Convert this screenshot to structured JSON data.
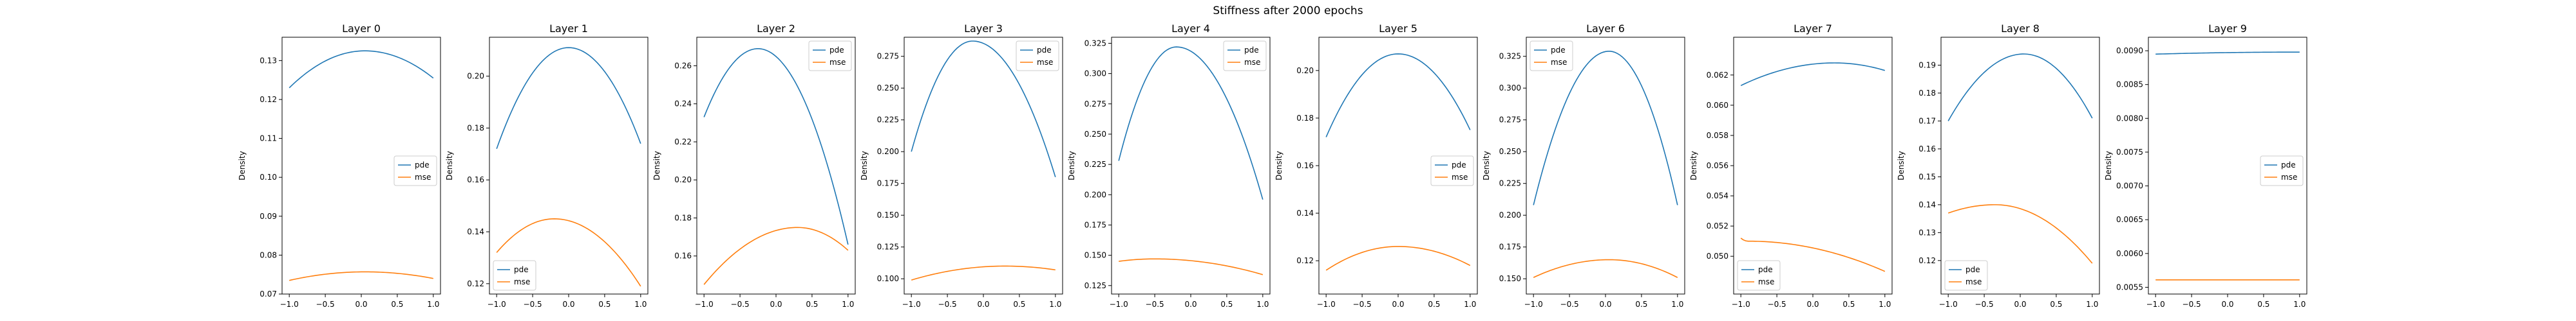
{
  "suptitle": "Stiffness after 2000 epochs",
  "colors": {
    "pde": "#1f77b4",
    "mse": "#ff7f0e",
    "axis": "#000000",
    "background": "#ffffff"
  },
  "chart_data": [
    {
      "type": "line",
      "title": "Layer 0",
      "ylabel": "Density",
      "xlim": [
        -1.1,
        1.1
      ],
      "ylim": [
        0.07,
        0.136
      ],
      "x_ticks": [
        -1.0,
        -0.5,
        0.0,
        0.5,
        1.0
      ],
      "y_ticks": [
        0.07,
        0.08,
        0.09,
        0.1,
        0.11,
        0.12,
        0.13
      ],
      "y_decimals": 2,
      "legend": "center-right",
      "series": [
        {
          "name": "pde",
          "values": [
            0.123,
            0.1325,
            0.1255
          ],
          "peak_x": 0.05
        },
        {
          "name": "mse",
          "values": [
            0.0735,
            0.0757,
            0.074
          ],
          "peak_x": 0.05
        }
      ]
    },
    {
      "type": "line",
      "title": "Layer 1",
      "ylabel": "Density",
      "xlim": [
        -1.1,
        1.1
      ],
      "ylim": [
        0.116,
        0.215
      ],
      "x_ticks": [
        -1.0,
        -0.5,
        0.0,
        0.5,
        1.0
      ],
      "y_ticks": [
        0.12,
        0.14,
        0.16,
        0.18,
        0.2
      ],
      "y_decimals": 2,
      "legend": "lower-left",
      "series": [
        {
          "name": "pde",
          "values": [
            0.172,
            0.211,
            0.174
          ],
          "peak_x": 0.0
        },
        {
          "name": "mse",
          "values": [
            0.132,
            0.145,
            0.119
          ],
          "peak_x": -0.2
        }
      ]
    },
    {
      "type": "line",
      "title": "Layer 2",
      "ylabel": "Density",
      "xlim": [
        -1.1,
        1.1
      ],
      "ylim": [
        0.14,
        0.275
      ],
      "x_ticks": [
        -1.0,
        -0.5,
        0.0,
        0.5,
        1.0
      ],
      "y_ticks": [
        0.16,
        0.18,
        0.2,
        0.22,
        0.24,
        0.26
      ],
      "y_decimals": 2,
      "legend": "upper-right",
      "series": [
        {
          "name": "pde",
          "values": [
            0.233,
            0.269,
            0.166
          ],
          "peak_x": -0.25
        },
        {
          "name": "mse",
          "values": [
            0.145,
            0.175,
            0.163
          ],
          "peak_x": 0.3
        }
      ]
    },
    {
      "type": "line",
      "title": "Layer 3",
      "ylabel": "Density",
      "xlim": [
        -1.1,
        1.1
      ],
      "ylim": [
        0.088,
        0.29
      ],
      "x_ticks": [
        -1.0,
        -0.5,
        0.0,
        0.5,
        1.0
      ],
      "y_ticks": [
        0.1,
        0.125,
        0.15,
        0.175,
        0.2,
        0.225,
        0.25,
        0.275
      ],
      "y_decimals": 3,
      "legend": "upper-right",
      "series": [
        {
          "name": "pde",
          "values": [
            0.2,
            0.287,
            0.18
          ],
          "peak_x": -0.15
        },
        {
          "name": "mse",
          "values": [
            0.099,
            0.11,
            0.107
          ],
          "peak_x": 0.3
        }
      ]
    },
    {
      "type": "line",
      "title": "Layer 4",
      "ylabel": "Density",
      "xlim": [
        -1.1,
        1.1
      ],
      "ylim": [
        0.118,
        0.33
      ],
      "x_ticks": [
        -1.0,
        -0.5,
        0.0,
        0.5,
        1.0
      ],
      "y_ticks": [
        0.125,
        0.15,
        0.175,
        0.2,
        0.225,
        0.25,
        0.275,
        0.3,
        0.325
      ],
      "y_decimals": 3,
      "legend": "upper-right",
      "series": [
        {
          "name": "pde",
          "values": [
            0.228,
            0.322,
            0.196
          ],
          "peak_x": -0.2
        },
        {
          "name": "mse",
          "values": [
            0.145,
            0.147,
            0.134
          ],
          "peak_x": -0.5
        }
      ]
    },
    {
      "type": "line",
      "title": "Layer 5",
      "ylabel": "Density",
      "xlim": [
        -1.1,
        1.1
      ],
      "ylim": [
        0.106,
        0.214
      ],
      "x_ticks": [
        -1.0,
        -0.5,
        0.0,
        0.5,
        1.0
      ],
      "y_ticks": [
        0.12,
        0.14,
        0.16,
        0.18,
        0.2
      ],
      "y_decimals": 2,
      "legend": "center-right",
      "series": [
        {
          "name": "pde",
          "values": [
            0.172,
            0.207,
            0.175
          ],
          "peak_x": 0.0
        },
        {
          "name": "mse",
          "values": [
            0.116,
            0.126,
            0.118
          ],
          "peak_x": 0.0
        }
      ]
    },
    {
      "type": "line",
      "title": "Layer 6",
      "ylabel": "Density",
      "xlim": [
        -1.1,
        1.1
      ],
      "ylim": [
        0.138,
        0.34
      ],
      "x_ticks": [
        -1.0,
        -0.5,
        0.0,
        0.5,
        1.0
      ],
      "y_ticks": [
        0.15,
        0.175,
        0.2,
        0.225,
        0.25,
        0.275,
        0.3,
        0.325
      ],
      "y_decimals": 3,
      "legend": "upper-left",
      "series": [
        {
          "name": "pde",
          "values": [
            0.208,
            0.329,
            0.208
          ],
          "peak_x": 0.05
        },
        {
          "name": "mse",
          "values": [
            0.151,
            0.165,
            0.151
          ],
          "peak_x": 0.05
        }
      ]
    },
    {
      "type": "line",
      "title": "Layer 7",
      "ylabel": "Density",
      "xlim": [
        -1.1,
        1.1
      ],
      "ylim": [
        0.0475,
        0.0645
      ],
      "x_ticks": [
        -1.0,
        -0.5,
        0.0,
        0.5,
        1.0
      ],
      "y_ticks": [
        0.05,
        0.052,
        0.054,
        0.056,
        0.058,
        0.06,
        0.062
      ],
      "y_decimals": 3,
      "legend": "lower-left",
      "series": [
        {
          "name": "pde",
          "values": [
            0.0613,
            0.0628,
            0.0623
          ],
          "peak_x": 0.3
        },
        {
          "name": "mse",
          "values": [
            0.0512,
            0.051,
            0.049
          ],
          "peak_x": -0.9
        }
      ]
    },
    {
      "type": "line",
      "title": "Layer 8",
      "ylabel": "Density",
      "xlim": [
        -1.1,
        1.1
      ],
      "ylim": [
        0.108,
        0.2
      ],
      "x_ticks": [
        -1.0,
        -0.5,
        0.0,
        0.5,
        1.0
      ],
      "y_ticks": [
        0.12,
        0.13,
        0.14,
        0.15,
        0.16,
        0.17,
        0.18,
        0.19
      ],
      "y_decimals": 2,
      "legend": "lower-left",
      "series": [
        {
          "name": "pde",
          "values": [
            0.17,
            0.194,
            0.171
          ],
          "peak_x": 0.05
        },
        {
          "name": "mse",
          "values": [
            0.137,
            0.14,
            0.119
          ],
          "peak_x": -0.35
        }
      ]
    },
    {
      "type": "line",
      "title": "Layer 9",
      "ylabel": "Density",
      "xlim": [
        -1.1,
        1.1
      ],
      "ylim": [
        0.0054,
        0.0092
      ],
      "x_ticks": [
        -1.0,
        -0.5,
        0.0,
        0.5,
        1.0
      ],
      "y_ticks": [
        0.0055,
        0.006,
        0.0065,
        0.007,
        0.0075,
        0.008,
        0.0085,
        0.009
      ],
      "y_decimals": 4,
      "legend": "center-right",
      "series": [
        {
          "name": "pde",
          "values": [
            0.00895,
            0.00898,
            0.00902
          ],
          "peak_x": 1.0
        },
        {
          "name": "mse",
          "values": [
            0.00561,
            0.00561,
            0.00561
          ],
          "peak_x": 0.0
        }
      ]
    }
  ]
}
